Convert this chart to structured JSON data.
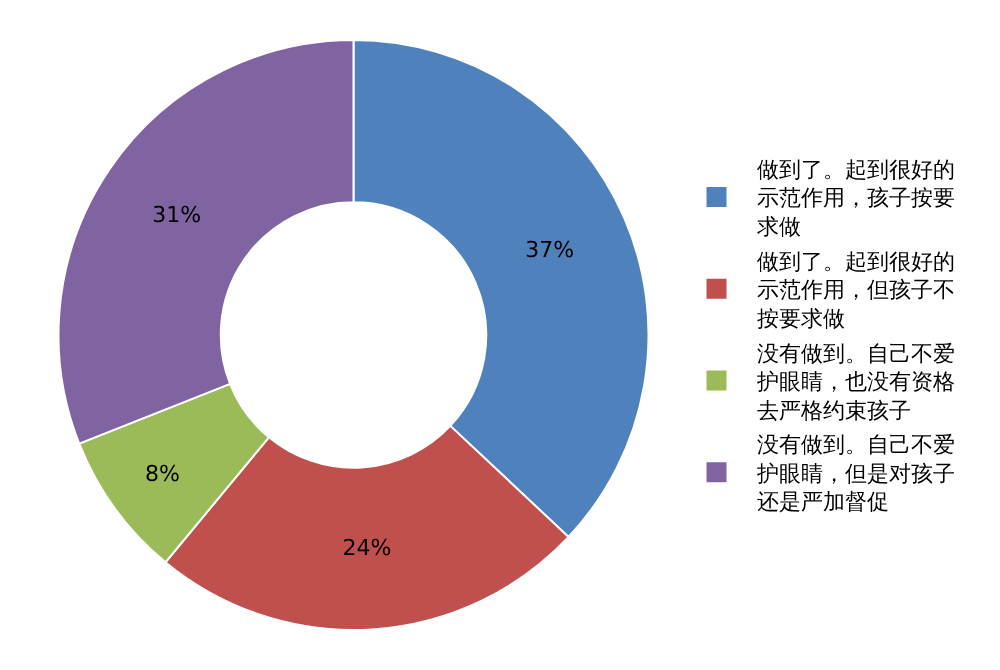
{
  "chart_data": {
    "type": "donut",
    "categories": [
      "做到了。起到很好的示范作用，孩子按要求做",
      "做到了。起到很好的示范作用，但孩子不按要求做",
      "没有做到。自己不爱护眼睛，也没有资格去严格约束孩子",
      "没有做到。自己不爱护眼睛，但是对孩子还是严加督促"
    ],
    "values": [
      37,
      24,
      8,
      31
    ],
    "colors": [
      "#4f81bd",
      "#c0504d",
      "#9bbb59",
      "#8064a2"
    ],
    "value_labels": [
      "37%",
      "24%",
      "8%",
      "31%"
    ],
    "legend": "right"
  }
}
